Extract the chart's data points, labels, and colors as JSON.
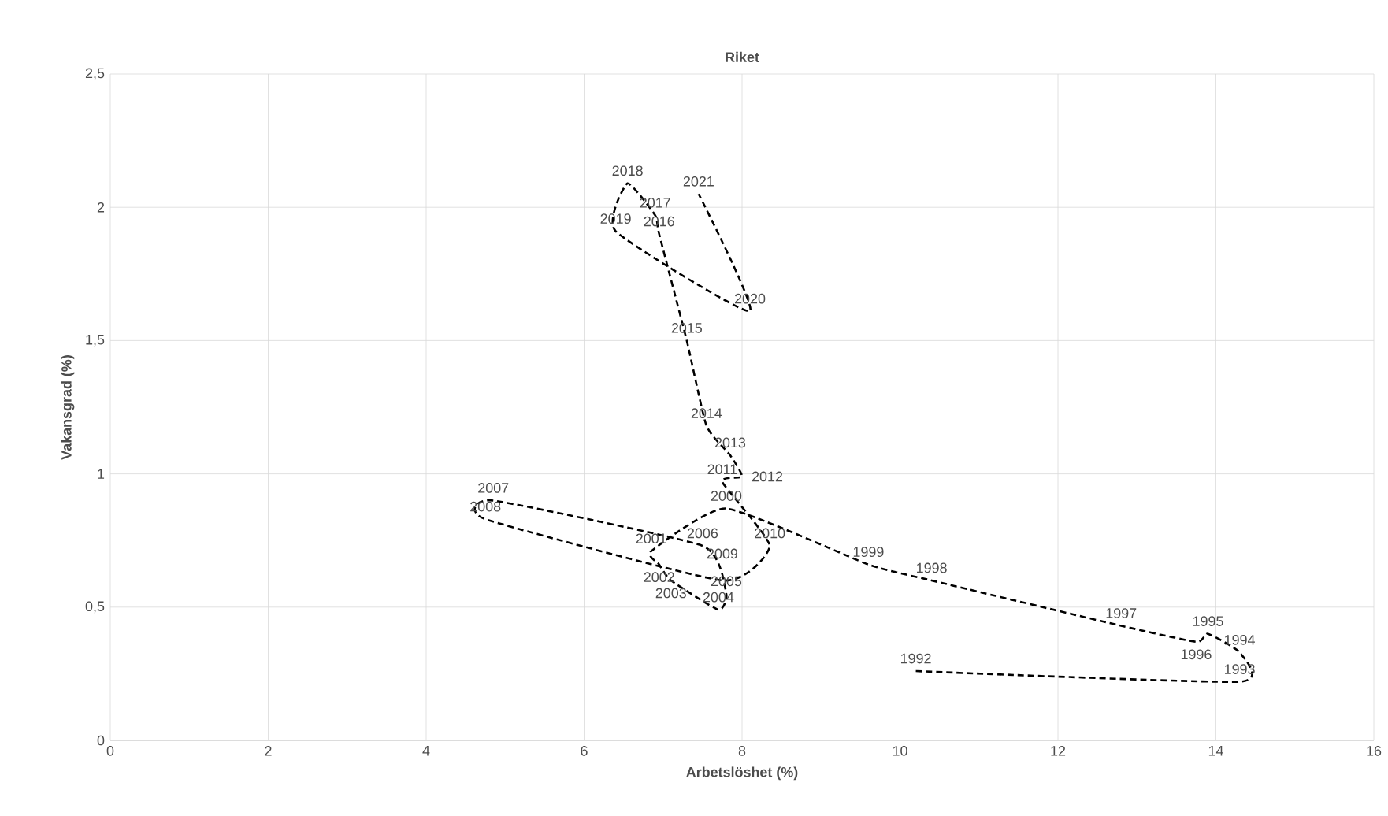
{
  "chart_data": {
    "type": "line",
    "title": "Riket",
    "xlabel": "Arbetslöshet (%)",
    "ylabel": "Vakansgrad (%)",
    "x": [
      10.2,
      14.3,
      14.3,
      13.9,
      13.75,
      12.8,
      10.4,
      9.6,
      7.8,
      6.85,
      6.95,
      7.1,
      7.7,
      7.8,
      7.5,
      4.85,
      4.75,
      7.75,
      8.35,
      7.75,
      8.0,
      7.85,
      7.55,
      7.3,
      6.95,
      6.9,
      6.55,
      6.4,
      8.1,
      7.45
    ],
    "series": [
      {
        "color": "#000000",
        "values": [
          0.26,
          0.22,
          0.33,
          0.4,
          0.37,
          0.43,
          0.6,
          0.66,
          0.87,
          0.71,
          0.66,
          0.6,
          0.49,
          0.55,
          0.73,
          0.9,
          0.83,
          0.6,
          0.73,
          0.97,
          0.99,
          1.07,
          1.18,
          1.5,
          1.9,
          1.97,
          2.09,
          1.91,
          1.61,
          2.05
        ]
      }
    ],
    "annotations": [
      {
        "text": "1992",
        "x": 10.2,
        "y": 0.26
      },
      {
        "text": "1993",
        "x": 14.3,
        "y": 0.22
      },
      {
        "text": "1994",
        "x": 14.3,
        "y": 0.33
      },
      {
        "text": "1995",
        "x": 13.9,
        "y": 0.4
      },
      {
        "text": "1996",
        "x": 13.75,
        "y": 0.37
      },
      {
        "text": "1997",
        "x": 12.8,
        "y": 0.43
      },
      {
        "text": "1998",
        "x": 10.4,
        "y": 0.6
      },
      {
        "text": "1999",
        "x": 9.6,
        "y": 0.66
      },
      {
        "text": "2000",
        "x": 7.8,
        "y": 0.87
      },
      {
        "text": "2001",
        "x": 6.85,
        "y": 0.71
      },
      {
        "text": "2002",
        "x": 6.95,
        "y": 0.66
      },
      {
        "text": "2003",
        "x": 7.1,
        "y": 0.6
      },
      {
        "text": "2004",
        "x": 7.7,
        "y": 0.49
      },
      {
        "text": "2005",
        "x": 7.8,
        "y": 0.55
      },
      {
        "text": "2006",
        "x": 7.5,
        "y": 0.73
      },
      {
        "text": "2007",
        "x": 4.85,
        "y": 0.9
      },
      {
        "text": "2008",
        "x": 4.75,
        "y": 0.83
      },
      {
        "text": "2009",
        "x": 7.75,
        "y": 0.6
      },
      {
        "text": "2010",
        "x": 8.35,
        "y": 0.73
      },
      {
        "text": "2011",
        "x": 7.75,
        "y": 0.97
      },
      {
        "text": "2012",
        "x": 8.0,
        "y": 0.99
      },
      {
        "text": "2013",
        "x": 7.85,
        "y": 1.07
      },
      {
        "text": "2014",
        "x": 7.55,
        "y": 1.18
      },
      {
        "text": "2015",
        "x": 7.3,
        "y": 1.5
      },
      {
        "text": "2016",
        "x": 6.95,
        "y": 1.9
      },
      {
        "text": "2017",
        "x": 6.9,
        "y": 1.97
      },
      {
        "text": "2018",
        "x": 6.55,
        "y": 2.09
      },
      {
        "text": "2019",
        "x": 6.4,
        "y": 1.91
      },
      {
        "text": "2020",
        "x": 8.1,
        "y": 1.61
      },
      {
        "text": "2021",
        "x": 7.45,
        "y": 2.05
      }
    ],
    "xlim": [
      0,
      16
    ],
    "xticks": [
      0,
      2,
      4,
      6,
      8,
      10,
      12,
      14,
      16
    ],
    "ylim": [
      0,
      2.5
    ],
    "yticks": [
      0,
      {
        "value": 0.5,
        "label": "0,5"
      },
      1,
      {
        "value": 1.5,
        "label": "1,5"
      },
      2,
      {
        "value": 2.5,
        "label": "2,5"
      }
    ],
    "grid": true,
    "marker": "none",
    "line_style": "dashed"
  }
}
